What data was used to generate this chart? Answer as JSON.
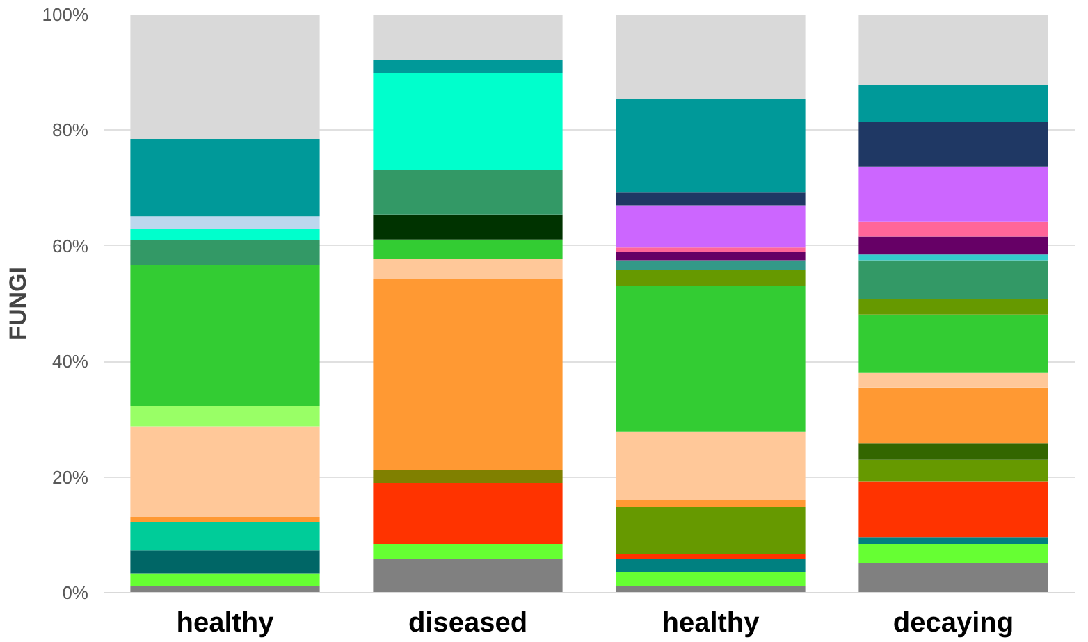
{
  "chart_data": {
    "type": "bar",
    "stacked": true,
    "ylabel": "FUNGI",
    "categories": [
      "healthy",
      "diseased",
      "healthy",
      "decaying"
    ],
    "ylim": [
      0,
      100
    ],
    "yticks": [
      {
        "value": 0,
        "label": "0%"
      },
      {
        "value": 20,
        "label": "20%"
      },
      {
        "value": 40,
        "label": "40%"
      },
      {
        "value": 60,
        "label": "60%"
      },
      {
        "value": 80,
        "label": "80%"
      },
      {
        "value": 100,
        "label": "100%"
      }
    ],
    "grid": "y",
    "series": [
      {
        "values": [
          1.2,
          5.9,
          1.1,
          5.1
        ],
        "colors": [
          "#808080",
          "#808080",
          "#808080",
          "#808080"
        ]
      },
      {
        "values": [
          2.1,
          2.5,
          2.5,
          3.3
        ],
        "colors": [
          "#66ff33",
          "#66ff33",
          "#66ff33",
          "#66ff33"
        ]
      },
      {
        "values": [
          4.0,
          10.6,
          2.2,
          1.2
        ],
        "colors": [
          "#006666",
          "#ff3300",
          "#008080",
          "#008080"
        ]
      },
      {
        "values": [
          4.9,
          2.2,
          0.9,
          9.7
        ],
        "colors": [
          "#00cc99",
          "#808000",
          "#ff3300",
          "#ff3300"
        ]
      },
      {
        "values": [
          0.9,
          33.1,
          8.2,
          3.7
        ],
        "colors": [
          "#ff9933",
          "#ff9933",
          "#669900",
          "#669900"
        ]
      },
      {
        "values": [
          15.7,
          3.4,
          1.2,
          2.8
        ],
        "colors": [
          "#ffc899",
          "#ffc899",
          "#ff9933",
          "#336600"
        ]
      },
      {
        "values": [
          3.5,
          3.4,
          11.7,
          9.7
        ],
        "colors": [
          "#99ff66",
          "#33cc33",
          "#ffc899",
          "#ff9933"
        ]
      },
      {
        "values": [
          24.4,
          4.3,
          25.2,
          2.5
        ],
        "colors": [
          "#33cc33",
          "#003300",
          "#33cc33",
          "#ffc899"
        ]
      },
      {
        "values": [
          4.3,
          7.8,
          2.8,
          10.1
        ],
        "colors": [
          "#339966",
          "#339966",
          "#669900",
          "#33cc33"
        ]
      },
      {
        "values": [
          1.9,
          16.7,
          1.7,
          2.7
        ],
        "colors": [
          "#00ffcc",
          "#00ffcc",
          "#339988",
          "#669900"
        ]
      },
      {
        "values": [
          2.2,
          2.2,
          1.4,
          6.7
        ],
        "colors": [
          "#bdd7ee",
          "#009999",
          "#660066",
          "#339966"
        ]
      },
      {
        "values": [
          13.4,
          7.9,
          0.8,
          1.0
        ],
        "colors": [
          "#009999",
          "#d9d9d9",
          "#ff6699",
          "#33cccc"
        ]
      },
      {
        "values": [
          21.5,
          null,
          7.3,
          3.1
        ],
        "colors": [
          "#d9d9d9",
          null,
          "#cc66ff",
          "#660066"
        ]
      },
      {
        "values": [
          null,
          null,
          2.2,
          2.6
        ],
        "colors": [
          null,
          null,
          "#1f3864",
          "#ff6699"
        ]
      },
      {
        "values": [
          null,
          null,
          16.2,
          9.5
        ],
        "colors": [
          null,
          null,
          "#009999",
          "#cc66ff"
        ]
      },
      {
        "values": [
          null,
          null,
          14.6,
          7.7
        ],
        "colors": [
          null,
          null,
          "#d9d9d9",
          "#1f3864"
        ]
      },
      {
        "values": [
          null,
          null,
          null,
          6.4
        ],
        "colors": [
          null,
          null,
          null,
          "#009999"
        ]
      },
      {
        "values": [
          null,
          null,
          null,
          12.2
        ],
        "colors": [
          null,
          null,
          null,
          "#d9d9d9"
        ]
      }
    ]
  }
}
